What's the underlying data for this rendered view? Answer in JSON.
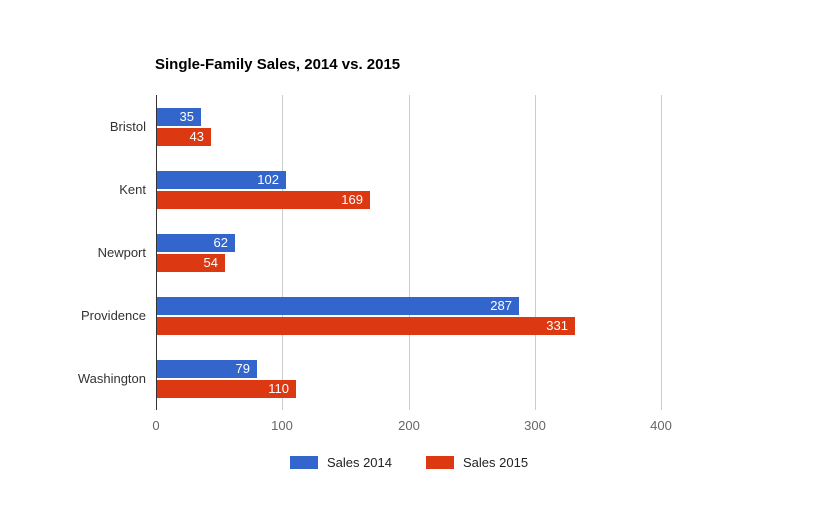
{
  "title": "Single-Family Sales, 2014 vs. 2015",
  "chart_data": {
    "type": "bar",
    "orientation": "horizontal",
    "title": "Single-Family Sales, 2014 vs. 2015",
    "categories": [
      "Bristol",
      "Kent",
      "Newport",
      "Providence",
      "Washington"
    ],
    "series": [
      {
        "name": "Sales 2014",
        "color": "#3366cc",
        "values": [
          35,
          102,
          62,
          287,
          79
        ]
      },
      {
        "name": "Sales 2015",
        "color": "#dc3912",
        "values": [
          43,
          169,
          54,
          331,
          110
        ]
      }
    ],
    "xlabel": "",
    "ylabel": "",
    "x_ticks": [
      0,
      100,
      200,
      300,
      400
    ],
    "xlim": [
      0,
      460
    ],
    "grid": true,
    "value_labels": "inside-end",
    "legend_position": "bottom"
  },
  "colors": {
    "background": "#ffffff",
    "gridline": "#cccccc",
    "axis_line": "#333333",
    "tick_text": "#666666",
    "category_text": "#333333",
    "value_text": "#ffffff"
  }
}
